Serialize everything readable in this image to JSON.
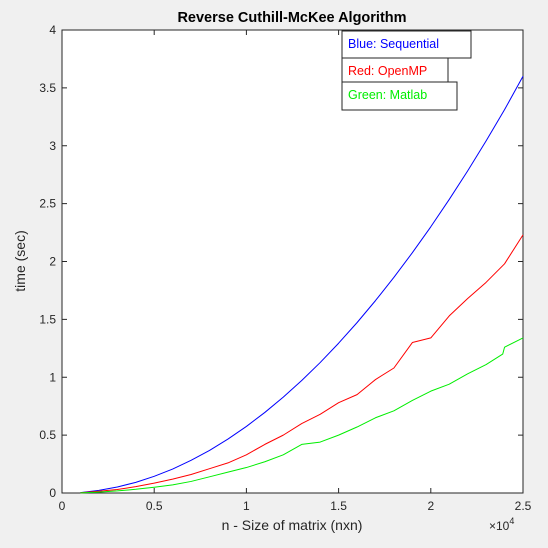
{
  "chart_data": {
    "type": "line",
    "title": "Reverse Cuthill-McKee Algorithm",
    "xlabel": "n - Size of matrix (nxn)",
    "ylabel": "time (sec)",
    "x_exponent_label": "×10",
    "x_exponent_power": "4",
    "xlim": [
      0,
      2.5
    ],
    "ylim": [
      0,
      4
    ],
    "x_ticks": [
      0,
      0.5,
      1,
      1.5,
      2,
      2.5
    ],
    "x_tick_labels": [
      "0",
      "0.5",
      "1",
      "1.5",
      "2",
      "2.5"
    ],
    "y_ticks": [
      0,
      0.5,
      1,
      1.5,
      2,
      2.5,
      3,
      3.5,
      4
    ],
    "y_tick_labels": [
      "0",
      "0.5",
      "1",
      "1.5",
      "2",
      "2.5",
      "3",
      "3.5",
      "4"
    ],
    "grid": false,
    "annotations": [
      {
        "text": "Blue: Sequential",
        "color": "#0000ff"
      },
      {
        "text": "Red: OpenMP",
        "color": "#ff0000"
      },
      {
        "text": "Green: Matlab",
        "color": "#00ee00"
      }
    ],
    "series": [
      {
        "color": "#0000ff",
        "x": [
          0.1,
          0.2,
          0.3,
          0.4,
          0.5,
          0.6,
          0.7,
          0.8,
          0.9,
          1.0,
          1.1,
          1.2,
          1.3,
          1.4,
          1.5,
          1.6,
          1.7,
          1.8,
          1.9,
          2.0,
          2.1,
          2.2,
          2.3,
          2.4,
          2.5
        ],
        "y": [
          0.003,
          0.023,
          0.052,
          0.092,
          0.144,
          0.207,
          0.282,
          0.368,
          0.466,
          0.575,
          0.696,
          0.828,
          0.972,
          1.127,
          1.294,
          1.472,
          1.662,
          1.863,
          2.076,
          2.3,
          2.536,
          2.783,
          3.042,
          3.312,
          3.6
        ]
      },
      {
        "color": "#ff0000",
        "x": [
          0.1,
          0.2,
          0.3,
          0.4,
          0.5,
          0.6,
          0.7,
          0.8,
          0.9,
          1.0,
          1.1,
          1.2,
          1.3,
          1.4,
          1.5,
          1.6,
          1.7,
          1.8,
          1.9,
          2.0,
          2.1,
          2.2,
          2.3,
          2.4,
          2.5
        ],
        "y": [
          0.002,
          0.015,
          0.03,
          0.055,
          0.085,
          0.12,
          0.16,
          0.21,
          0.26,
          0.33,
          0.42,
          0.5,
          0.6,
          0.68,
          0.78,
          0.85,
          0.98,
          1.08,
          1.3,
          1.34,
          1.53,
          1.68,
          1.82,
          1.98,
          2.23
        ]
      },
      {
        "color": "#00ee00",
        "x": [
          0.1,
          0.2,
          0.3,
          0.4,
          0.5,
          0.6,
          0.7,
          0.8,
          0.9,
          1.0,
          1.1,
          1.2,
          1.3,
          1.4,
          1.5,
          1.6,
          1.7,
          1.8,
          1.9,
          2.0,
          2.1,
          2.2,
          2.3,
          2.39,
          2.4,
          2.5
        ],
        "y": [
          0.001,
          0.008,
          0.018,
          0.032,
          0.05,
          0.07,
          0.1,
          0.14,
          0.18,
          0.22,
          0.27,
          0.33,
          0.42,
          0.44,
          0.5,
          0.57,
          0.65,
          0.71,
          0.8,
          0.88,
          0.94,
          1.03,
          1.11,
          1.2,
          1.26,
          1.34
        ]
      }
    ]
  }
}
